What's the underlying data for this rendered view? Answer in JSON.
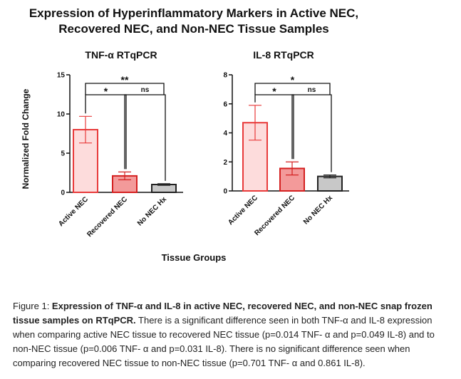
{
  "figure_title": [
    "Expression of Hyperinflammatory Markers in Active NEC,",
    "Recovered NEC, and Non-NEC Tissue Samples"
  ],
  "y_label": "Normalized Fold Change",
  "x_label": "Tissue Groups",
  "chart_data": [
    {
      "type": "bar",
      "title": "TNF-α RTqPCR",
      "categories": [
        "Active NEC",
        "Recovered NEC",
        "No NEC Hx"
      ],
      "values": [
        8.0,
        2.1,
        1.0
      ],
      "errors": [
        1.7,
        0.5,
        0.1
      ],
      "colors": [
        "#fddcdc",
        "#f39a9a",
        "#c8c8c8"
      ],
      "edge_colors": [
        "#e83a3a",
        "#d42020",
        "#222222"
      ],
      "ylim": [
        0,
        15
      ],
      "yticks": [
        0,
        5,
        10,
        15
      ],
      "significance": [
        {
          "pair": [
            "Active NEC",
            "Recovered NEC"
          ],
          "label": "*"
        },
        {
          "pair": [
            "Recovered NEC",
            "No NEC Hx"
          ],
          "label": "ns"
        },
        {
          "pair": [
            "Active NEC",
            "No NEC Hx"
          ],
          "label": "**"
        }
      ]
    },
    {
      "type": "bar",
      "title": "IL-8 RTqPCR",
      "categories": [
        "Active NEC",
        "Recovered NEC",
        "No NEC Hx"
      ],
      "values": [
        4.7,
        1.55,
        1.0
      ],
      "errors": [
        1.2,
        0.45,
        0.1
      ],
      "colors": [
        "#fddcdc",
        "#f39a9a",
        "#c8c8c8"
      ],
      "edge_colors": [
        "#e83a3a",
        "#d42020",
        "#222222"
      ],
      "ylim": [
        0,
        8
      ],
      "yticks": [
        0,
        2,
        4,
        6,
        8
      ],
      "significance": [
        {
          "pair": [
            "Active NEC",
            "Recovered NEC"
          ],
          "label": "*"
        },
        {
          "pair": [
            "Recovered NEC",
            "No NEC Hx"
          ],
          "label": "ns"
        },
        {
          "pair": [
            "Active NEC",
            "No NEC Hx"
          ],
          "label": "*"
        }
      ]
    }
  ],
  "caption": {
    "label": "Figure 1: ",
    "bold": "Expression of TNF-α and IL-8 in active NEC, recovered NEC, and non-NEC snap frozen tissue samples on RTqPCR.",
    "text": " There is a significant difference seen in both TNF-α and IL-8 expression when comparing active NEC tissue to recovered NEC tissue (p=0.014 TNF- α and p=0.049 IL-8) and to non-NEC tissue (p=0.006 TNF- α and p=0.031 IL-8). There is no significant difference seen when comparing recovered NEC tissue to non-NEC tissue (p=0.701 TNF- α and 0.861 IL-8)."
  }
}
